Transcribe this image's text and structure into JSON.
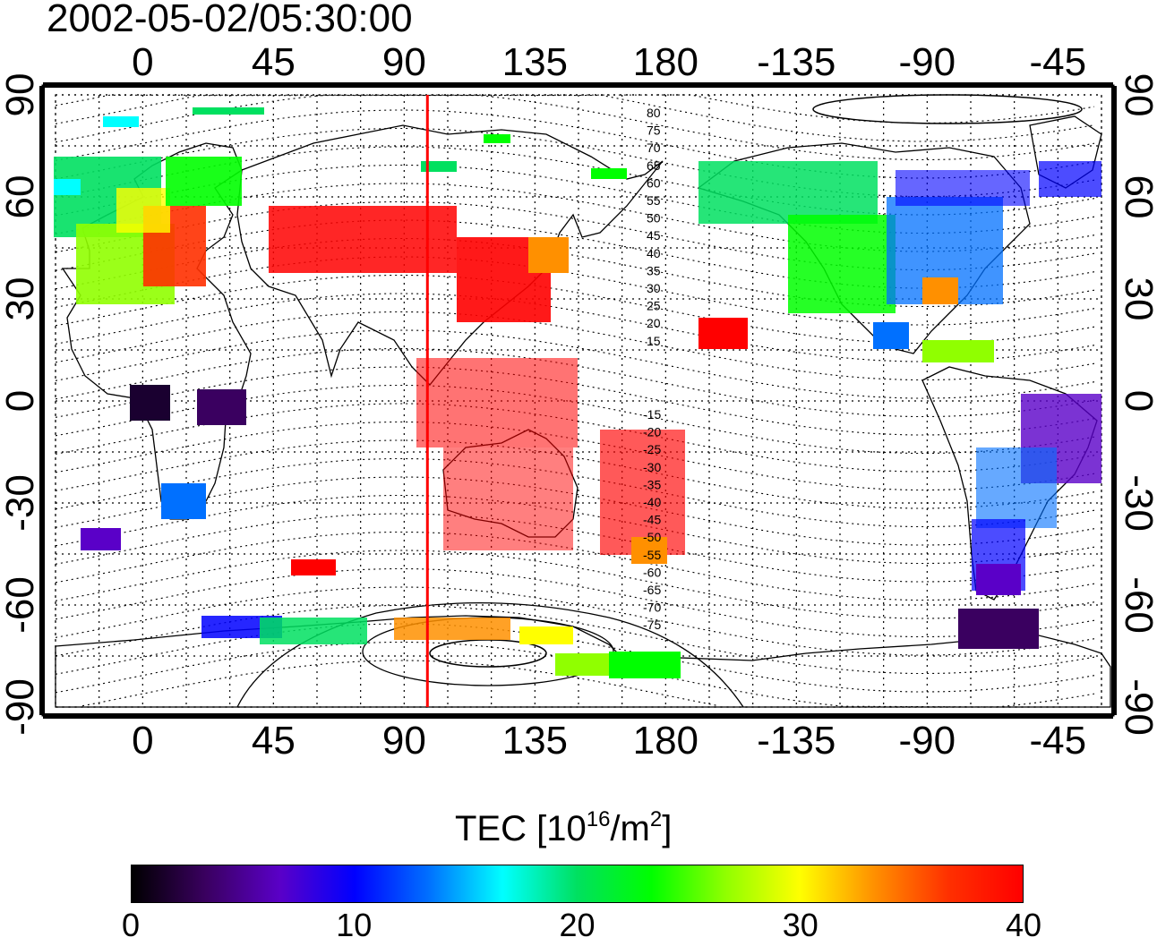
{
  "title": "2002-05-02/05:30:00",
  "map": {
    "top_lon_labels": [
      "0",
      "45",
      "90",
      "135",
      "180",
      "-135",
      "-90",
      "-45"
    ],
    "bottom_lon_labels": [
      "0",
      "45",
      "90",
      "135",
      "180",
      "-135",
      "-90",
      "-45"
    ],
    "left_lat_labels": [
      "90",
      "60",
      "30",
      "0",
      "-30",
      "-60",
      "-90"
    ],
    "right_lat_labels": [
      "90",
      "60",
      "30",
      "0",
      "-30",
      "-60",
      "-90"
    ],
    "north_contour_labels": [
      "80",
      "75",
      "70",
      "65",
      "60",
      "55",
      "50",
      "45",
      "40",
      "35",
      "30",
      "25",
      "20",
      "15"
    ],
    "south_contour_labels": [
      "-15",
      "-20",
      "-25",
      "-30",
      "-35",
      "-40",
      "-45",
      "-50",
      "-55",
      "-60",
      "-65",
      "-70",
      "-75"
    ],
    "meridian_line_lon": 98,
    "meridian_line_color": "#ff0000"
  },
  "colorbar": {
    "title_main": "TEC  [10",
    "title_exp1": "16",
    "title_mid": "/m",
    "title_exp2": "2",
    "title_end": "]",
    "labels": [
      "0",
      "10",
      "20",
      "30",
      "40"
    ],
    "min": 0,
    "max": 40,
    "colors": [
      "#000000",
      "#3a0060",
      "#5a00c8",
      "#0000ff",
      "#0070ff",
      "#00ffff",
      "#00e060",
      "#00ff00",
      "#90ff00",
      "#ffff00",
      "#ff9000",
      "#ff3000",
      "#ff0000"
    ]
  }
}
